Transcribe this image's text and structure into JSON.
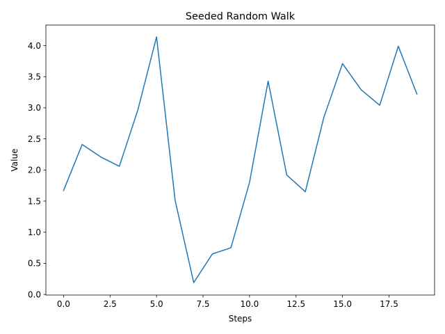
{
  "chart_data": {
    "type": "line",
    "title": "Seeded Random Walk",
    "xlabel": "Steps",
    "ylabel": "Value",
    "xlim": [
      -0.95,
      19.95
    ],
    "ylim": [
      -0.01,
      4.33
    ],
    "xticks": [
      0,
      2.5,
      5,
      7.5,
      10,
      12.5,
      15,
      17.5
    ],
    "xtick_labels": [
      "0.0",
      "2.5",
      "5.0",
      "7.5",
      "10.0",
      "12.5",
      "15.0",
      "17.5"
    ],
    "yticks": [
      0,
      0.5,
      1,
      1.5,
      2,
      2.5,
      3,
      3.5,
      4
    ],
    "ytick_labels": [
      "0.0",
      "0.5",
      "1.0",
      "1.5",
      "2.0",
      "2.5",
      "3.0",
      "3.5",
      "4.0"
    ],
    "grid": false,
    "series": [
      {
        "color": "#1f77b4",
        "x": [
          0,
          1,
          2,
          3,
          4,
          5,
          6,
          7,
          8,
          9,
          10,
          11,
          12,
          13,
          14,
          15,
          16,
          17,
          18,
          19
        ],
        "values": [
          1.67,
          2.41,
          2.21,
          2.06,
          2.97,
          4.14,
          1.51,
          0.19,
          0.65,
          0.75,
          1.8,
          3.43,
          1.92,
          1.65,
          2.85,
          3.71,
          3.29,
          3.04,
          3.99,
          3.22
        ]
      }
    ]
  }
}
